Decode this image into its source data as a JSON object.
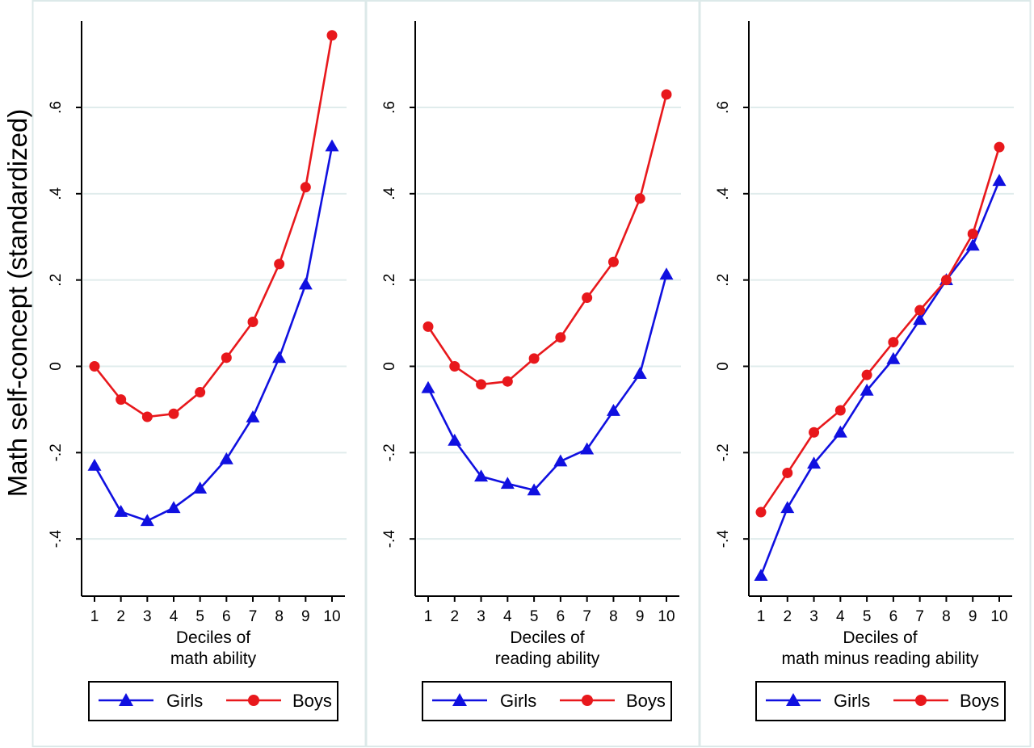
{
  "ylabel": "Math self-concept (standardized)",
  "yticks": [
    {
      "v": 0.6,
      "label": ".6"
    },
    {
      "v": 0.4,
      "label": ".4"
    },
    {
      "v": 0.2,
      "label": ".2"
    },
    {
      "v": 0.0,
      "label": "0"
    },
    {
      "v": -0.2,
      "label": "-.2"
    },
    {
      "v": -0.4,
      "label": "-.4"
    }
  ],
  "colors": {
    "girls": "#1010e0",
    "boys": "#e8181c",
    "grid": "#e0ecec",
    "panel_border": "#dce9e9"
  },
  "legend": {
    "girls": "Girls",
    "boys": "Boys"
  },
  "chart_data": [
    {
      "type": "line",
      "xlabel": [
        "Deciles of",
        "math ability"
      ],
      "x": [
        1,
        2,
        3,
        4,
        5,
        6,
        7,
        8,
        9,
        10
      ],
      "ylim": [
        -0.52,
        0.8
      ],
      "series": [
        {
          "name": "Girls",
          "marker": "triangle",
          "values": [
            -0.23,
            -0.337,
            -0.358,
            -0.328,
            -0.283,
            -0.215,
            -0.118,
            0.02,
            0.19,
            0.51
          ]
        },
        {
          "name": "Boys",
          "marker": "circle",
          "values": [
            0.0,
            -0.077,
            -0.117,
            -0.11,
            -0.06,
            0.02,
            0.103,
            0.237,
            0.415,
            0.767
          ]
        }
      ]
    },
    {
      "type": "line",
      "xlabel": [
        "Deciles of",
        "reading ability"
      ],
      "x": [
        1,
        2,
        3,
        4,
        5,
        6,
        7,
        8,
        9,
        10
      ],
      "ylim": [
        -0.52,
        0.8
      ],
      "series": [
        {
          "name": "Girls",
          "marker": "triangle",
          "values": [
            -0.05,
            -0.172,
            -0.255,
            -0.272,
            -0.287,
            -0.22,
            -0.192,
            -0.103,
            -0.017,
            0.213
          ]
        },
        {
          "name": "Boys",
          "marker": "circle",
          "values": [
            0.092,
            0.0,
            -0.042,
            -0.035,
            0.018,
            0.067,
            0.159,
            0.242,
            0.389,
            0.63
          ]
        }
      ]
    },
    {
      "type": "line",
      "xlabel": [
        "Deciles of",
        "math minus reading ability"
      ],
      "x": [
        1,
        2,
        3,
        4,
        5,
        6,
        7,
        8,
        9,
        10
      ],
      "ylim": [
        -0.52,
        0.8
      ],
      "series": [
        {
          "name": "Girls",
          "marker": "triangle",
          "values": [
            -0.485,
            -0.328,
            -0.225,
            -0.153,
            -0.056,
            0.017,
            0.108,
            0.2,
            0.28,
            0.43
          ]
        },
        {
          "name": "Boys",
          "marker": "circle",
          "values": [
            -0.338,
            -0.247,
            -0.153,
            -0.102,
            -0.02,
            0.056,
            0.13,
            0.2,
            0.307,
            0.508
          ]
        }
      ]
    }
  ]
}
